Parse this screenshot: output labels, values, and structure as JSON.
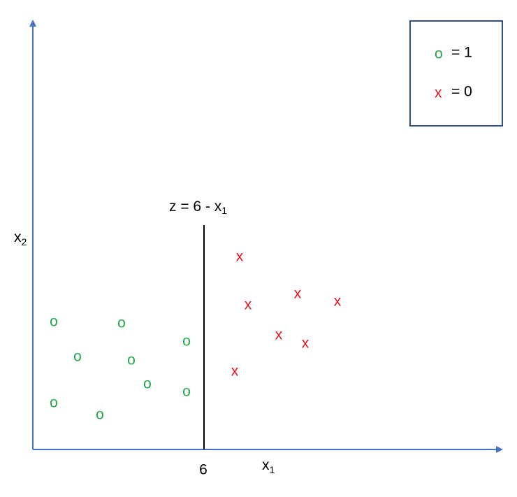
{
  "legend": {
    "entries": [
      {
        "marker": "o",
        "label": "= 1"
      },
      {
        "marker": "x",
        "label": "= 0"
      }
    ]
  },
  "boundary": {
    "label": "z = 6 - x",
    "label_sub": "1",
    "tick": "6"
  },
  "x_axis": {
    "label": "x",
    "sub": "1"
  },
  "y_axis": {
    "label": "x",
    "sub": "2"
  },
  "points": {
    "class_1": [
      "o",
      "o",
      "o",
      "o",
      "o",
      "o",
      "o",
      "o",
      "o"
    ],
    "class_0": [
      "x",
      "x",
      "x",
      "x",
      "x",
      "x",
      "x"
    ]
  }
}
